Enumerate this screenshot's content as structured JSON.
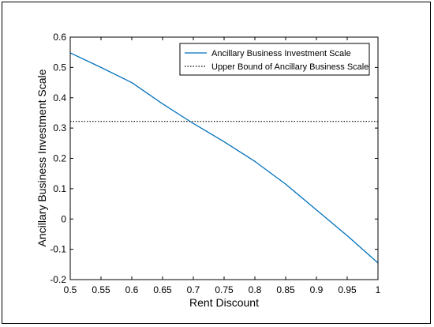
{
  "chart_data": {
    "type": "line",
    "xlabel": "Rent Discount",
    "ylabel": "Ancillary Business Investment Scale",
    "xlim": [
      0.5,
      1
    ],
    "ylim": [
      -0.2,
      0.6
    ],
    "x_ticks": [
      "0.5",
      "0.55",
      "0.6",
      "0.65",
      "0.7",
      "0.75",
      "0.8",
      "0.85",
      "0.9",
      "0.95",
      "1"
    ],
    "y_ticks": [
      "-0.2",
      "-0.1",
      "0",
      "0.1",
      "0.2",
      "0.3",
      "0.4",
      "0.5",
      "0.6"
    ],
    "grid": false,
    "legend_position": "top-right",
    "series": [
      {
        "name": "Ancillary Business Investment Scale",
        "style": "solid",
        "color": "#0072BD",
        "x": [
          0.5,
          0.55,
          0.6,
          0.65,
          0.7,
          0.75,
          0.8,
          0.85,
          0.9,
          0.95,
          1.0
        ],
        "y": [
          0.548,
          0.5,
          0.45,
          0.38,
          0.315,
          0.255,
          0.19,
          0.115,
          0.03,
          -0.055,
          -0.145
        ]
      },
      {
        "name": "Upper Bound of Ancillary Business Scale",
        "style": "dotted",
        "color": "#000000",
        "x": [
          0.5,
          1.0
        ],
        "y": [
          0.322,
          0.322
        ]
      }
    ]
  }
}
